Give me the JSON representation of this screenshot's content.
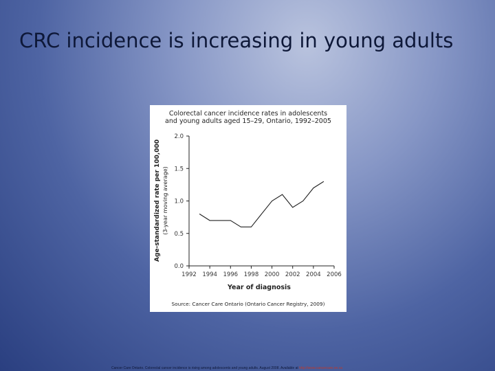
{
  "slide": {
    "title": "CRC incidence is increasing in young adults"
  },
  "footnote": {
    "text": "Cancer Care Ontario. Colorectal cancer incidence is rising among adolescents and young adults. August 2008. Available at",
    "link": "http://www.cancercare.on.ca"
  },
  "chart_data": {
    "type": "line",
    "title_line1": "Colorectal cancer incidence rates in adolescents",
    "title_line2": "and young adults aged 15–29, Ontario, 1992–2005",
    "xlabel": "Year of diagnosis",
    "ylabel": "Age-standardized rate per 100,000",
    "ylabel_sub": "(3-year moving average)",
    "source": "Source: Cancer Care Ontario (Ontario Cancer Registry, 2009)",
    "xlim": [
      1992,
      2006
    ],
    "ylim": [
      0.0,
      2.0
    ],
    "x_ticks": [
      1992,
      1994,
      1996,
      1998,
      2000,
      2002,
      2004,
      2006
    ],
    "x_tick_labels": [
      "1992",
      "1994",
      "1996",
      "1998",
      "2000",
      "2002",
      "2004",
      "2006"
    ],
    "y_ticks": [
      0.0,
      0.5,
      1.0,
      1.5,
      2.0
    ],
    "y_tick_labels": [
      "0.0",
      "0.5",
      "1.0",
      "1.5",
      "2.0"
    ],
    "grid": false,
    "series": [
      {
        "line_style": "solid",
        "color": "#222222",
        "x": [
          1993,
          1994,
          1995,
          1996,
          1997,
          1998,
          1999,
          2000,
          2001,
          2002,
          2003,
          2004,
          2005
        ],
        "y": [
          0.8,
          0.7,
          0.7,
          0.7,
          0.6,
          0.6,
          0.8,
          1.0,
          1.1,
          0.9,
          1.0,
          1.2,
          1.3
        ]
      }
    ]
  }
}
